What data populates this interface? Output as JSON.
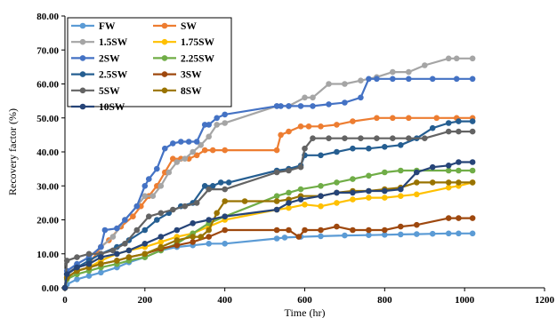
{
  "chart_data": {
    "type": "line",
    "xlabel": "Time (hr)",
    "ylabel": "Recovery factor (%)",
    "xlim": [
      0,
      1200
    ],
    "ylim": [
      0,
      80
    ],
    "xticks": [
      "0",
      "200",
      "400",
      "600",
      "800",
      "1000",
      "1200"
    ],
    "yticks": [
      "0.00",
      "10.00",
      "20.00",
      "30.00",
      "40.00",
      "50.00",
      "60.00",
      "70.00",
      "80.00"
    ],
    "grid": "none",
    "legend_placement": "top-left",
    "series": [
      {
        "name": "FW",
        "color": "#5b9bd5",
        "x": [
          0,
          5,
          30,
          60,
          90,
          130,
          160,
          200,
          240,
          280,
          320,
          360,
          400,
          530,
          550,
          590,
          640,
          700,
          760,
          800,
          840,
          880,
          920,
          960,
          985,
          1020
        ],
        "y": [
          0,
          1,
          2.5,
          3.5,
          4.5,
          6,
          7.5,
          9,
          11,
          12,
          12.5,
          13,
          13,
          14.5,
          14.8,
          15,
          15.2,
          15.4,
          15.5,
          15.6,
          15.7,
          15.8,
          15.9,
          16,
          16,
          16
        ]
      },
      {
        "name": "SW",
        "color": "#ed7d31",
        "x": [
          0,
          5,
          30,
          60,
          90,
          110,
          140,
          170,
          190,
          210,
          230,
          250,
          270,
          290,
          310,
          330,
          350,
          370,
          400,
          530,
          540,
          560,
          590,
          610,
          640,
          680,
          720,
          780,
          820,
          860,
          930,
          980,
          1020
        ],
        "y": [
          0,
          4,
          6,
          7,
          12,
          14,
          18,
          21,
          24,
          27,
          30,
          34,
          38,
          38,
          38,
          39,
          40.5,
          40.5,
          40.5,
          40.5,
          45,
          46,
          47.5,
          47.5,
          47.5,
          48,
          49,
          50,
          50,
          50,
          50,
          50,
          50
        ]
      },
      {
        "name": "1.5SW",
        "color": "#a5a5a5",
        "x": [
          0,
          5,
          30,
          60,
          90,
          120,
          150,
          180,
          200,
          220,
          240,
          260,
          280,
          300,
          320,
          340,
          360,
          380,
          400,
          530,
          560,
          600,
          620,
          660,
          700,
          740,
          780,
          820,
          860,
          900,
          960,
          980,
          1020
        ],
        "y": [
          0,
          4,
          7,
          9,
          12,
          15,
          20,
          24,
          27,
          27,
          30,
          34,
          37,
          38,
          40,
          42,
          44.5,
          48,
          48.5,
          53.5,
          53.5,
          56,
          56,
          60,
          60,
          61,
          62,
          63.5,
          63.5,
          65.5,
          67.5,
          67.5,
          67.5
        ]
      },
      {
        "name": "1.75SW",
        "color": "#ffc000",
        "x": [
          0,
          5,
          30,
          60,
          90,
          130,
          160,
          200,
          240,
          280,
          320,
          360,
          400,
          530,
          560,
          600,
          640,
          680,
          720,
          760,
          800,
          840,
          880,
          960,
          985,
          1020
        ],
        "y": [
          0,
          3,
          5,
          6,
          8,
          10,
          11,
          12,
          13.5,
          15,
          16,
          18,
          20,
          23,
          23.5,
          24.5,
          24,
          25,
          26,
          26.5,
          26.5,
          27,
          27.5,
          29.5,
          30,
          31
        ]
      },
      {
        "name": "2SW",
        "color": "#4472c4",
        "x": [
          0,
          5,
          30,
          60,
          90,
          100,
          130,
          150,
          180,
          200,
          210,
          230,
          250,
          270,
          290,
          310,
          330,
          350,
          360,
          380,
          400,
          530,
          540,
          560,
          590,
          620,
          660,
          700,
          740,
          760,
          780,
          820,
          860,
          920,
          980,
          1020
        ],
        "y": [
          0,
          5,
          7,
          9,
          12,
          17,
          17.5,
          20,
          24,
          30,
          32,
          35,
          41,
          42.5,
          43,
          43,
          43,
          48,
          48,
          50,
          51,
          53.5,
          53.5,
          53.5,
          53.5,
          53.5,
          54,
          54.5,
          56,
          61.5,
          61.5,
          61.5,
          61.5,
          61.5,
          61.5,
          61.5
        ]
      },
      {
        "name": "2.25SW",
        "color": "#70ad47",
        "x": [
          0,
          5,
          30,
          60,
          90,
          130,
          160,
          200,
          240,
          280,
          320,
          360,
          400,
          530,
          560,
          590,
          640,
          680,
          720,
          760,
          800,
          840,
          880,
          960,
          985,
          1020
        ],
        "y": [
          0,
          2.5,
          4,
          5,
          6,
          7,
          8,
          9,
          11,
          13,
          16,
          19,
          21,
          27,
          28,
          29,
          30,
          31,
          32,
          33,
          34,
          34.5,
          34.5,
          34.5,
          34.5,
          34.5
        ]
      },
      {
        "name": "2.5SW",
        "color": "#255e91",
        "x": [
          0,
          5,
          30,
          60,
          90,
          130,
          160,
          200,
          230,
          260,
          290,
          320,
          350,
          370,
          390,
          410,
          530,
          560,
          590,
          600,
          640,
          680,
          720,
          760,
          800,
          840,
          880,
          920,
          960,
          985,
          1020
        ],
        "y": [
          0,
          4,
          6,
          8,
          10,
          12,
          14,
          17,
          20,
          22,
          24,
          25,
          30,
          30,
          31,
          31,
          34.5,
          35,
          36,
          39,
          39,
          40,
          41,
          41,
          41.5,
          42,
          44,
          47,
          48.5,
          49,
          49
        ]
      },
      {
        "name": "3SW",
        "color": "#9e480e",
        "x": [
          0,
          5,
          30,
          60,
          90,
          130,
          160,
          200,
          240,
          280,
          320,
          360,
          400,
          530,
          560,
          585,
          600,
          640,
          680,
          720,
          760,
          800,
          840,
          880,
          960,
          985,
          1020
        ],
        "y": [
          0,
          3,
          5,
          6,
          7,
          8,
          9,
          10,
          11.5,
          12.5,
          13.5,
          15,
          17,
          17,
          17,
          15,
          17,
          17,
          18,
          17,
          17,
          17,
          18,
          18.5,
          20.5,
          20.5,
          20.5
        ]
      },
      {
        "name": "5SW",
        "color": "#636363",
        "x": [
          0,
          5,
          30,
          60,
          90,
          120,
          150,
          180,
          210,
          240,
          270,
          300,
          330,
          360,
          400,
          530,
          560,
          590,
          600,
          620,
          660,
          700,
          740,
          780,
          820,
          860,
          900,
          960,
          985,
          1020
        ],
        "y": [
          0,
          8,
          9,
          10,
          10,
          11,
          13,
          17,
          21,
          22,
          23,
          24,
          25,
          29,
          29,
          34,
          34.5,
          35.5,
          41,
          44,
          44,
          44,
          44,
          44,
          44,
          44,
          44,
          46,
          46,
          46
        ]
      },
      {
        "name": "8SW",
        "color": "#997300",
        "x": [
          0,
          5,
          30,
          60,
          90,
          130,
          160,
          200,
          240,
          280,
          320,
          340,
          360,
          380,
          400,
          450,
          530,
          560,
          590,
          640,
          680,
          720,
          760,
          800,
          840,
          880,
          920,
          960,
          985,
          1020
        ],
        "y": [
          0,
          3,
          5,
          6,
          7,
          8,
          9,
          10,
          12,
          14,
          15,
          15,
          17,
          22,
          25.5,
          25.5,
          25.5,
          26,
          27,
          27,
          28,
          28.5,
          28.5,
          29,
          29.5,
          31,
          31,
          31,
          31,
          31
        ]
      },
      {
        "name": "10SW",
        "color": "#264478",
        "x": [
          0,
          5,
          30,
          60,
          90,
          130,
          160,
          200,
          240,
          280,
          320,
          360,
          400,
          530,
          560,
          590,
          640,
          680,
          720,
          760,
          800,
          840,
          880,
          920,
          960,
          985,
          1020
        ],
        "y": [
          0,
          4,
          6,
          7,
          9,
          10,
          11,
          13,
          15,
          17,
          19,
          20,
          21,
          23,
          25,
          26,
          27,
          28,
          28,
          28.5,
          28.5,
          29,
          34,
          35.5,
          36,
          37,
          37
        ]
      }
    ]
  }
}
